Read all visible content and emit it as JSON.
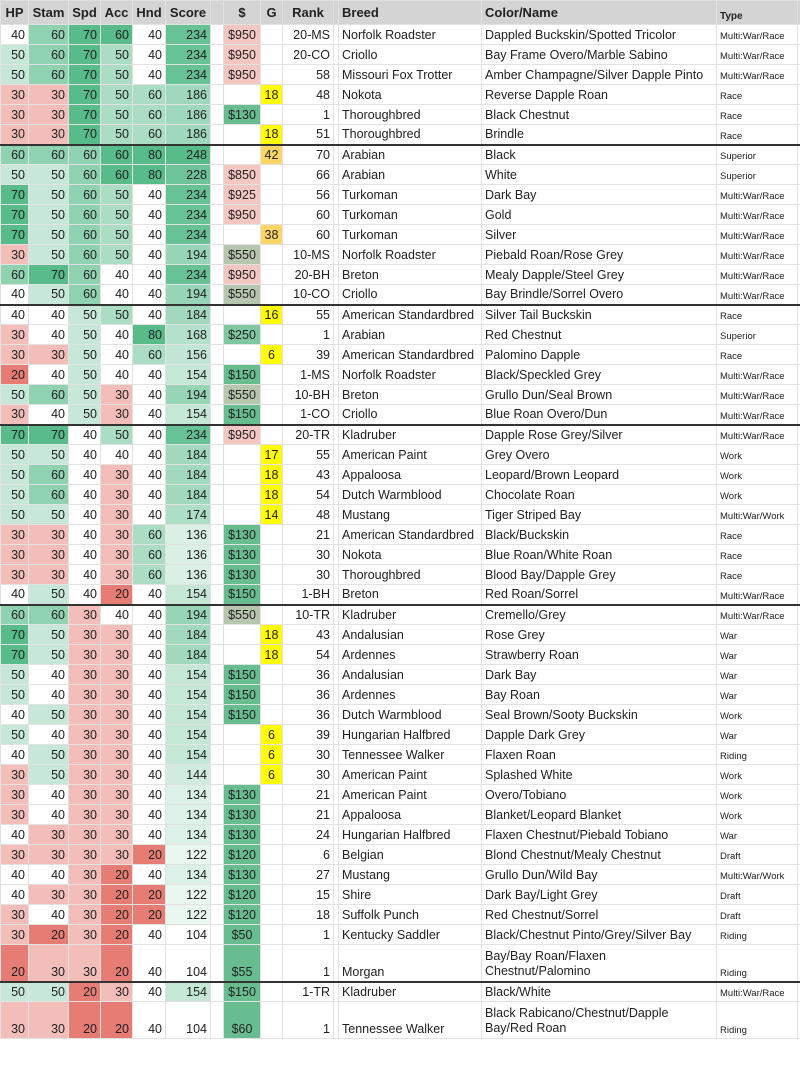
{
  "headers": [
    "HP",
    "Stam",
    "Spd",
    "Acc",
    "Hnd",
    "Score",
    "",
    "$",
    "G",
    "Rank",
    "",
    "Breed",
    "Color/Name",
    "Type",
    ""
  ],
  "colors": {
    "scale_low": "#e67c73",
    "scale_mid": "#ffffff",
    "scale_high": "#57bb8a",
    "price_high": "#f4c7c3",
    "price_mid": "#b7c6ae",
    "price_low": "#67bd8f",
    "g_yellow": "#ffff00",
    "g_orange": "#ffd666",
    "separator": "#333333"
  },
  "rows": [
    {
      "hp": 40,
      "stam": 60,
      "spd": 70,
      "acc": 60,
      "hnd": 40,
      "score": 234,
      "price": "$950",
      "g": "",
      "rank": "20-MS",
      "breed": "Norfolk Roadster",
      "color": "Dappled Buckskin/Spotted Tricolor",
      "type": "Multi:War/Race"
    },
    {
      "hp": 50,
      "stam": 60,
      "spd": 70,
      "acc": 50,
      "hnd": 40,
      "score": 234,
      "price": "$950",
      "g": "",
      "rank": "20-CO",
      "breed": "Criollo",
      "color": "Bay Frame Overo/Marble Sabino",
      "type": "Multi:War/Race"
    },
    {
      "hp": 50,
      "stam": 60,
      "spd": 70,
      "acc": 50,
      "hnd": 40,
      "score": 234,
      "price": "$950",
      "g": "",
      "rank": "58",
      "breed": "Missouri Fox Trotter",
      "color": "Amber Champagne/Silver Dapple Pinto",
      "type": "Multi:War/Race"
    },
    {
      "hp": 30,
      "stam": 30,
      "spd": 70,
      "acc": 50,
      "hnd": 60,
      "score": 186,
      "price": "",
      "g": "18",
      "rank": "48",
      "breed": "Nokota",
      "color": "Reverse Dapple Roan",
      "type": "Race"
    },
    {
      "hp": 30,
      "stam": 30,
      "spd": 70,
      "acc": 50,
      "hnd": 60,
      "score": 186,
      "price": "$130",
      "g": "",
      "rank": "1",
      "breed": "Thoroughbred",
      "color": "Black Chestnut",
      "type": "Race"
    },
    {
      "hp": 30,
      "stam": 30,
      "spd": 70,
      "acc": 50,
      "hnd": 60,
      "score": 186,
      "price": "",
      "g": "18",
      "rank": "51",
      "breed": "Thoroughbred",
      "color": "Brindle",
      "type": "Race",
      "sep": true
    },
    {
      "hp": 60,
      "stam": 60,
      "spd": 60,
      "acc": 60,
      "hnd": 80,
      "score": 248,
      "price": "",
      "g": "42",
      "rank": "70",
      "breed": "Arabian",
      "color": "Black",
      "type": "Superior"
    },
    {
      "hp": 50,
      "stam": 50,
      "spd": 60,
      "acc": 60,
      "hnd": 80,
      "score": 228,
      "price": "$850",
      "g": "",
      "rank": "66",
      "breed": "Arabian",
      "color": "White",
      "type": "Superior"
    },
    {
      "hp": 70,
      "stam": 50,
      "spd": 60,
      "acc": 50,
      "hnd": 40,
      "score": 234,
      "price": "$925",
      "g": "",
      "rank": "56",
      "breed": "Turkoman",
      "color": "Dark Bay",
      "type": "Multi:War/Race"
    },
    {
      "hp": 70,
      "stam": 50,
      "spd": 60,
      "acc": 50,
      "hnd": 40,
      "score": 234,
      "price": "$950",
      "g": "",
      "rank": "60",
      "breed": "Turkoman",
      "color": "Gold",
      "type": "Multi:War/Race"
    },
    {
      "hp": 70,
      "stam": 50,
      "spd": 60,
      "acc": 50,
      "hnd": 40,
      "score": 234,
      "price": "",
      "g": "38",
      "rank": "60",
      "breed": "Turkoman",
      "color": "Silver",
      "type": "Multi:War/Race"
    },
    {
      "hp": 30,
      "stam": 50,
      "spd": 60,
      "acc": 50,
      "hnd": 40,
      "score": 194,
      "price": "$550",
      "g": "",
      "rank": "10-MS",
      "breed": "Norfolk Roadster",
      "color": "Piebald Roan/Rose Grey",
      "type": "Multi:War/Race"
    },
    {
      "hp": 60,
      "stam": 70,
      "spd": 60,
      "acc": 40,
      "hnd": 40,
      "score": 234,
      "price": "$950",
      "g": "",
      "rank": "20-BH",
      "breed": "Breton",
      "color": "Mealy Dapple/Steel Grey",
      "type": "Multi:War/Race"
    },
    {
      "hp": 40,
      "stam": 50,
      "spd": 60,
      "acc": 40,
      "hnd": 40,
      "score": 194,
      "price": "$550",
      "g": "",
      "rank": "10-CO",
      "breed": "Criollo",
      "color": "Bay Brindle/Sorrel Overo",
      "type": "Multi:War/Race",
      "sep": true
    },
    {
      "hp": 40,
      "stam": 40,
      "spd": 50,
      "acc": 50,
      "hnd": 40,
      "score": 184,
      "price": "",
      "g": "16",
      "rank": "55",
      "breed": "American Standardbred",
      "color": "Silver Tail Buckskin",
      "type": "Race"
    },
    {
      "hp": 30,
      "stam": 40,
      "spd": 50,
      "acc": 40,
      "hnd": 80,
      "score": 168,
      "price": "$250",
      "g": "",
      "rank": "1",
      "breed": "Arabian",
      "color": "Red Chestnut",
      "type": "Superior"
    },
    {
      "hp": 30,
      "stam": 30,
      "spd": 50,
      "acc": 40,
      "hnd": 60,
      "score": 156,
      "price": "",
      "g": "6",
      "rank": "39",
      "breed": "American Standardbred",
      "color": "Palomino Dapple",
      "type": "Race"
    },
    {
      "hp": 20,
      "stam": 40,
      "spd": 50,
      "acc": 40,
      "hnd": 40,
      "score": 154,
      "price": "$150",
      "g": "",
      "rank": "1-MS",
      "breed": "Norfolk Roadster",
      "color": "Black/Speckled Grey",
      "type": "Multi:War/Race"
    },
    {
      "hp": 50,
      "stam": 60,
      "spd": 50,
      "acc": 30,
      "hnd": 40,
      "score": 194,
      "price": "$550",
      "g": "",
      "rank": "10-BH",
      "breed": "Breton",
      "color": "Grullo Dun/Seal Brown",
      "type": "Multi:War/Race"
    },
    {
      "hp": 30,
      "stam": 40,
      "spd": 50,
      "acc": 30,
      "hnd": 40,
      "score": 154,
      "price": "$150",
      "g": "",
      "rank": "1-CO",
      "breed": "Criollo",
      "color": "Blue Roan Overo/Dun",
      "type": "Multi:War/Race",
      "sep": true
    },
    {
      "hp": 70,
      "stam": 70,
      "spd": 40,
      "acc": 50,
      "hnd": 40,
      "score": 234,
      "price": "$950",
      "g": "",
      "rank": "20-TR",
      "breed": "Kladruber",
      "color": "Dapple Rose Grey/Silver",
      "type": "Multi:War/Race"
    },
    {
      "hp": 50,
      "stam": 50,
      "spd": 40,
      "acc": 40,
      "hnd": 40,
      "score": 184,
      "price": "",
      "g": "17",
      "rank": "55",
      "breed": "American Paint",
      "color": "Grey Overo",
      "type": "Work"
    },
    {
      "hp": 50,
      "stam": 60,
      "spd": 40,
      "acc": 30,
      "hnd": 40,
      "score": 184,
      "price": "",
      "g": "18",
      "rank": "43",
      "breed": "Appaloosa",
      "color": "Leopard/Brown Leopard",
      "type": "Work"
    },
    {
      "hp": 50,
      "stam": 60,
      "spd": 40,
      "acc": 30,
      "hnd": 40,
      "score": 184,
      "price": "",
      "g": "18",
      "rank": "54",
      "breed": "Dutch Warmblood",
      "color": "Chocolate Roan",
      "type": "Work"
    },
    {
      "hp": 50,
      "stam": 50,
      "spd": 40,
      "acc": 30,
      "hnd": 40,
      "score": 174,
      "price": "",
      "g": "14",
      "rank": "48",
      "breed": "Mustang",
      "color": "Tiger Striped Bay",
      "type": "Multi:War/Work"
    },
    {
      "hp": 30,
      "stam": 30,
      "spd": 40,
      "acc": 30,
      "hnd": 60,
      "score": 136,
      "price": "$130",
      "g": "",
      "rank": "21",
      "breed": "American Standardbred",
      "color": "Black/Buckskin",
      "type": "Race"
    },
    {
      "hp": 30,
      "stam": 30,
      "spd": 40,
      "acc": 30,
      "hnd": 60,
      "score": 136,
      "price": "$130",
      "g": "",
      "rank": "30",
      "breed": "Nokota",
      "color": "Blue Roan/White Roan",
      "type": "Race"
    },
    {
      "hp": 30,
      "stam": 30,
      "spd": 40,
      "acc": 30,
      "hnd": 60,
      "score": 136,
      "price": "$130",
      "g": "",
      "rank": "30",
      "breed": "Thoroughbred",
      "color": "Blood Bay/Dapple Grey",
      "type": "Race"
    },
    {
      "hp": 40,
      "stam": 50,
      "spd": 40,
      "acc": 20,
      "hnd": 40,
      "score": 154,
      "price": "$150",
      "g": "",
      "rank": "1-BH",
      "breed": "Breton",
      "color": "Red Roan/Sorrel",
      "type": "Multi:War/Race",
      "sep": true
    },
    {
      "hp": 60,
      "stam": 60,
      "spd": 30,
      "acc": 40,
      "hnd": 40,
      "score": 194,
      "price": "$550",
      "g": "",
      "rank": "10-TR",
      "breed": "Kladruber",
      "color": "Cremello/Grey",
      "type": "Multi:War/Race"
    },
    {
      "hp": 70,
      "stam": 50,
      "spd": 30,
      "acc": 30,
      "hnd": 40,
      "score": 184,
      "price": "",
      "g": "18",
      "rank": "43",
      "breed": "Andalusian",
      "color": "Rose Grey",
      "type": "War"
    },
    {
      "hp": 70,
      "stam": 50,
      "spd": 30,
      "acc": 30,
      "hnd": 40,
      "score": 184,
      "price": "",
      "g": "18",
      "rank": "54",
      "breed": "Ardennes",
      "color": "Strawberry Roan",
      "type": "War"
    },
    {
      "hp": 50,
      "stam": 40,
      "spd": 30,
      "acc": 30,
      "hnd": 40,
      "score": 154,
      "price": "$150",
      "g": "",
      "rank": "36",
      "breed": "Andalusian",
      "color": "Dark Bay",
      "type": "War"
    },
    {
      "hp": 50,
      "stam": 40,
      "spd": 30,
      "acc": 30,
      "hnd": 40,
      "score": 154,
      "price": "$150",
      "g": "",
      "rank": "36",
      "breed": "Ardennes",
      "color": "Bay Roan",
      "type": "War"
    },
    {
      "hp": 40,
      "stam": 50,
      "spd": 30,
      "acc": 30,
      "hnd": 40,
      "score": 154,
      "price": "$150",
      "g": "",
      "rank": "36",
      "breed": "Dutch Warmblood",
      "color": "Seal Brown/Sooty Buckskin",
      "type": "Work"
    },
    {
      "hp": 50,
      "stam": 40,
      "spd": 30,
      "acc": 30,
      "hnd": 40,
      "score": 154,
      "price": "",
      "g": "6",
      "rank": "39",
      "breed": "Hungarian Halfbred",
      "color": "Dapple Dark Grey",
      "type": "War"
    },
    {
      "hp": 40,
      "stam": 50,
      "spd": 30,
      "acc": 30,
      "hnd": 40,
      "score": 154,
      "price": "",
      "g": "6",
      "rank": "30",
      "breed": "Tennessee Walker",
      "color": "Flaxen Roan",
      "type": "Riding"
    },
    {
      "hp": 30,
      "stam": 50,
      "spd": 30,
      "acc": 30,
      "hnd": 40,
      "score": 144,
      "price": "",
      "g": "6",
      "rank": "30",
      "breed": "American Paint",
      "color": "Splashed White",
      "type": "Work"
    },
    {
      "hp": 30,
      "stam": 40,
      "spd": 30,
      "acc": 30,
      "hnd": 40,
      "score": 134,
      "price": "$130",
      "g": "",
      "rank": "21",
      "breed": "American Paint",
      "color": "Overo/Tobiano",
      "type": "Work"
    },
    {
      "hp": 30,
      "stam": 40,
      "spd": 30,
      "acc": 30,
      "hnd": 40,
      "score": 134,
      "price": "$130",
      "g": "",
      "rank": "21",
      "breed": "Appaloosa",
      "color": "Blanket/Leopard Blanket",
      "type": "Work"
    },
    {
      "hp": 40,
      "stam": 30,
      "spd": 30,
      "acc": 30,
      "hnd": 40,
      "score": 134,
      "price": "$130",
      "g": "",
      "rank": "24",
      "breed": "Hungarian Halfbred",
      "color": "Flaxen Chestnut/Piebald Tobiano",
      "type": "War"
    },
    {
      "hp": 30,
      "stam": 30,
      "spd": 30,
      "acc": 30,
      "hnd": 20,
      "score": 122,
      "price": "$120",
      "g": "",
      "rank": "6",
      "breed": "Belgian",
      "color": "Blond Chestnut/Mealy Chestnut",
      "type": "Draft"
    },
    {
      "hp": 40,
      "stam": 40,
      "spd": 30,
      "acc": 20,
      "hnd": 40,
      "score": 134,
      "price": "$130",
      "g": "",
      "rank": "27",
      "breed": "Mustang",
      "color": "Grullo Dun/Wild Bay",
      "type": "Multi:War/Work"
    },
    {
      "hp": 40,
      "stam": 30,
      "spd": 30,
      "acc": 20,
      "hnd": 20,
      "score": 122,
      "price": "$120",
      "g": "",
      "rank": "15",
      "breed": "Shire",
      "color": "Dark Bay/Light Grey",
      "type": "Draft"
    },
    {
      "hp": 30,
      "stam": 40,
      "spd": 30,
      "acc": 20,
      "hnd": 20,
      "score": 122,
      "price": "$120",
      "g": "",
      "rank": "18",
      "breed": "Suffolk Punch",
      "color": "Red Chestnut/Sorrel",
      "type": "Draft"
    },
    {
      "hp": 30,
      "stam": 20,
      "spd": 30,
      "acc": 20,
      "hnd": 40,
      "score": 104,
      "price": "$50",
      "g": "",
      "rank": "1",
      "breed": "Kentucky Saddler",
      "color": "Black/Chestnut Pinto/Grey/Silver Bay",
      "type": "Riding"
    },
    {
      "hp": 20,
      "stam": 30,
      "spd": 30,
      "acc": 20,
      "hnd": 40,
      "score": 104,
      "price": "$55",
      "g": "",
      "rank": "1",
      "breed": "Morgan",
      "color": "Bay/Bay Roan/Flaxen Chestnut/Palomino",
      "type": "Riding",
      "sep": true,
      "tall": true
    },
    {
      "hp": 50,
      "stam": 50,
      "spd": 20,
      "acc": 30,
      "hnd": 40,
      "score": 154,
      "price": "$150",
      "g": "",
      "rank": "1-TR",
      "breed": "Kladruber",
      "color": "Black/White",
      "type": "Multi:War/Race"
    },
    {
      "hp": 30,
      "stam": 30,
      "spd": 20,
      "acc": 20,
      "hnd": 40,
      "score": 104,
      "price": "$60",
      "g": "",
      "rank": "1",
      "breed": "Tennessee Walker",
      "color": "Black Rabicano/Chestnut/Dapple Bay/Red Roan",
      "type": "Riding",
      "tall": true
    }
  ]
}
